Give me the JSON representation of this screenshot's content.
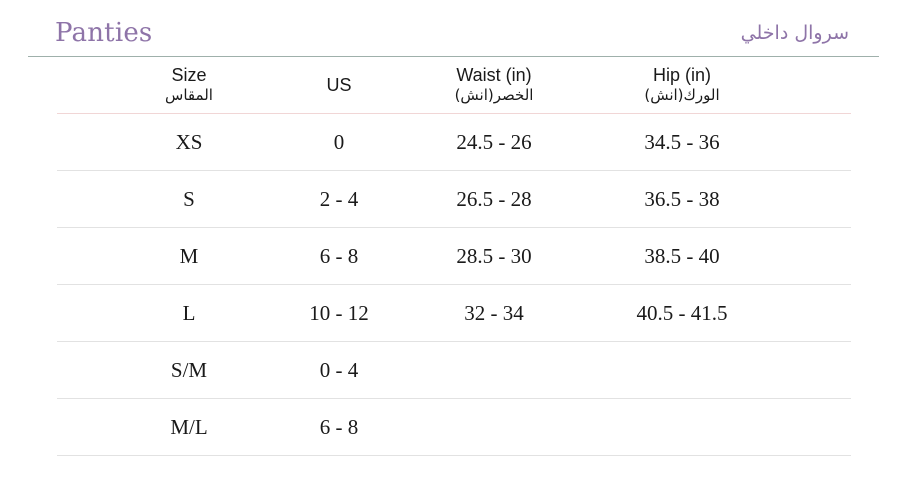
{
  "title": {
    "english": "Panties",
    "arabic": "سروال داخلي"
  },
  "table": {
    "headers": [
      {
        "en": "Size",
        "ar": "المقاس"
      },
      {
        "en": "US",
        "ar": ""
      },
      {
        "en": "Waist (in)",
        "ar": "الخصر(انش)"
      },
      {
        "en": "Hip (in)",
        "ar": "الورك(انش)"
      }
    ],
    "rows": [
      {
        "size": "XS",
        "us": "0",
        "waist": "24.5 - 26",
        "hip": "34.5 - 36"
      },
      {
        "size": "S",
        "us": "2 - 4",
        "waist": "26.5 - 28",
        "hip": "36.5 - 38"
      },
      {
        "size": "M",
        "us": "6 - 8",
        "waist": "28.5 - 30",
        "hip": "38.5 - 40"
      },
      {
        "size": "L",
        "us": "10 - 12",
        "waist": "32 - 34",
        "hip": "40.5 - 41.5"
      },
      {
        "size": "S/M",
        "us": "0 - 4",
        "waist": "",
        "hip": ""
      },
      {
        "size": "M/L",
        "us": "6 - 8",
        "waist": "",
        "hip": ""
      }
    ]
  },
  "colors": {
    "title": "#8e74a8",
    "rule": "#9fb0ab",
    "row_divider": "#e2e2e2"
  }
}
